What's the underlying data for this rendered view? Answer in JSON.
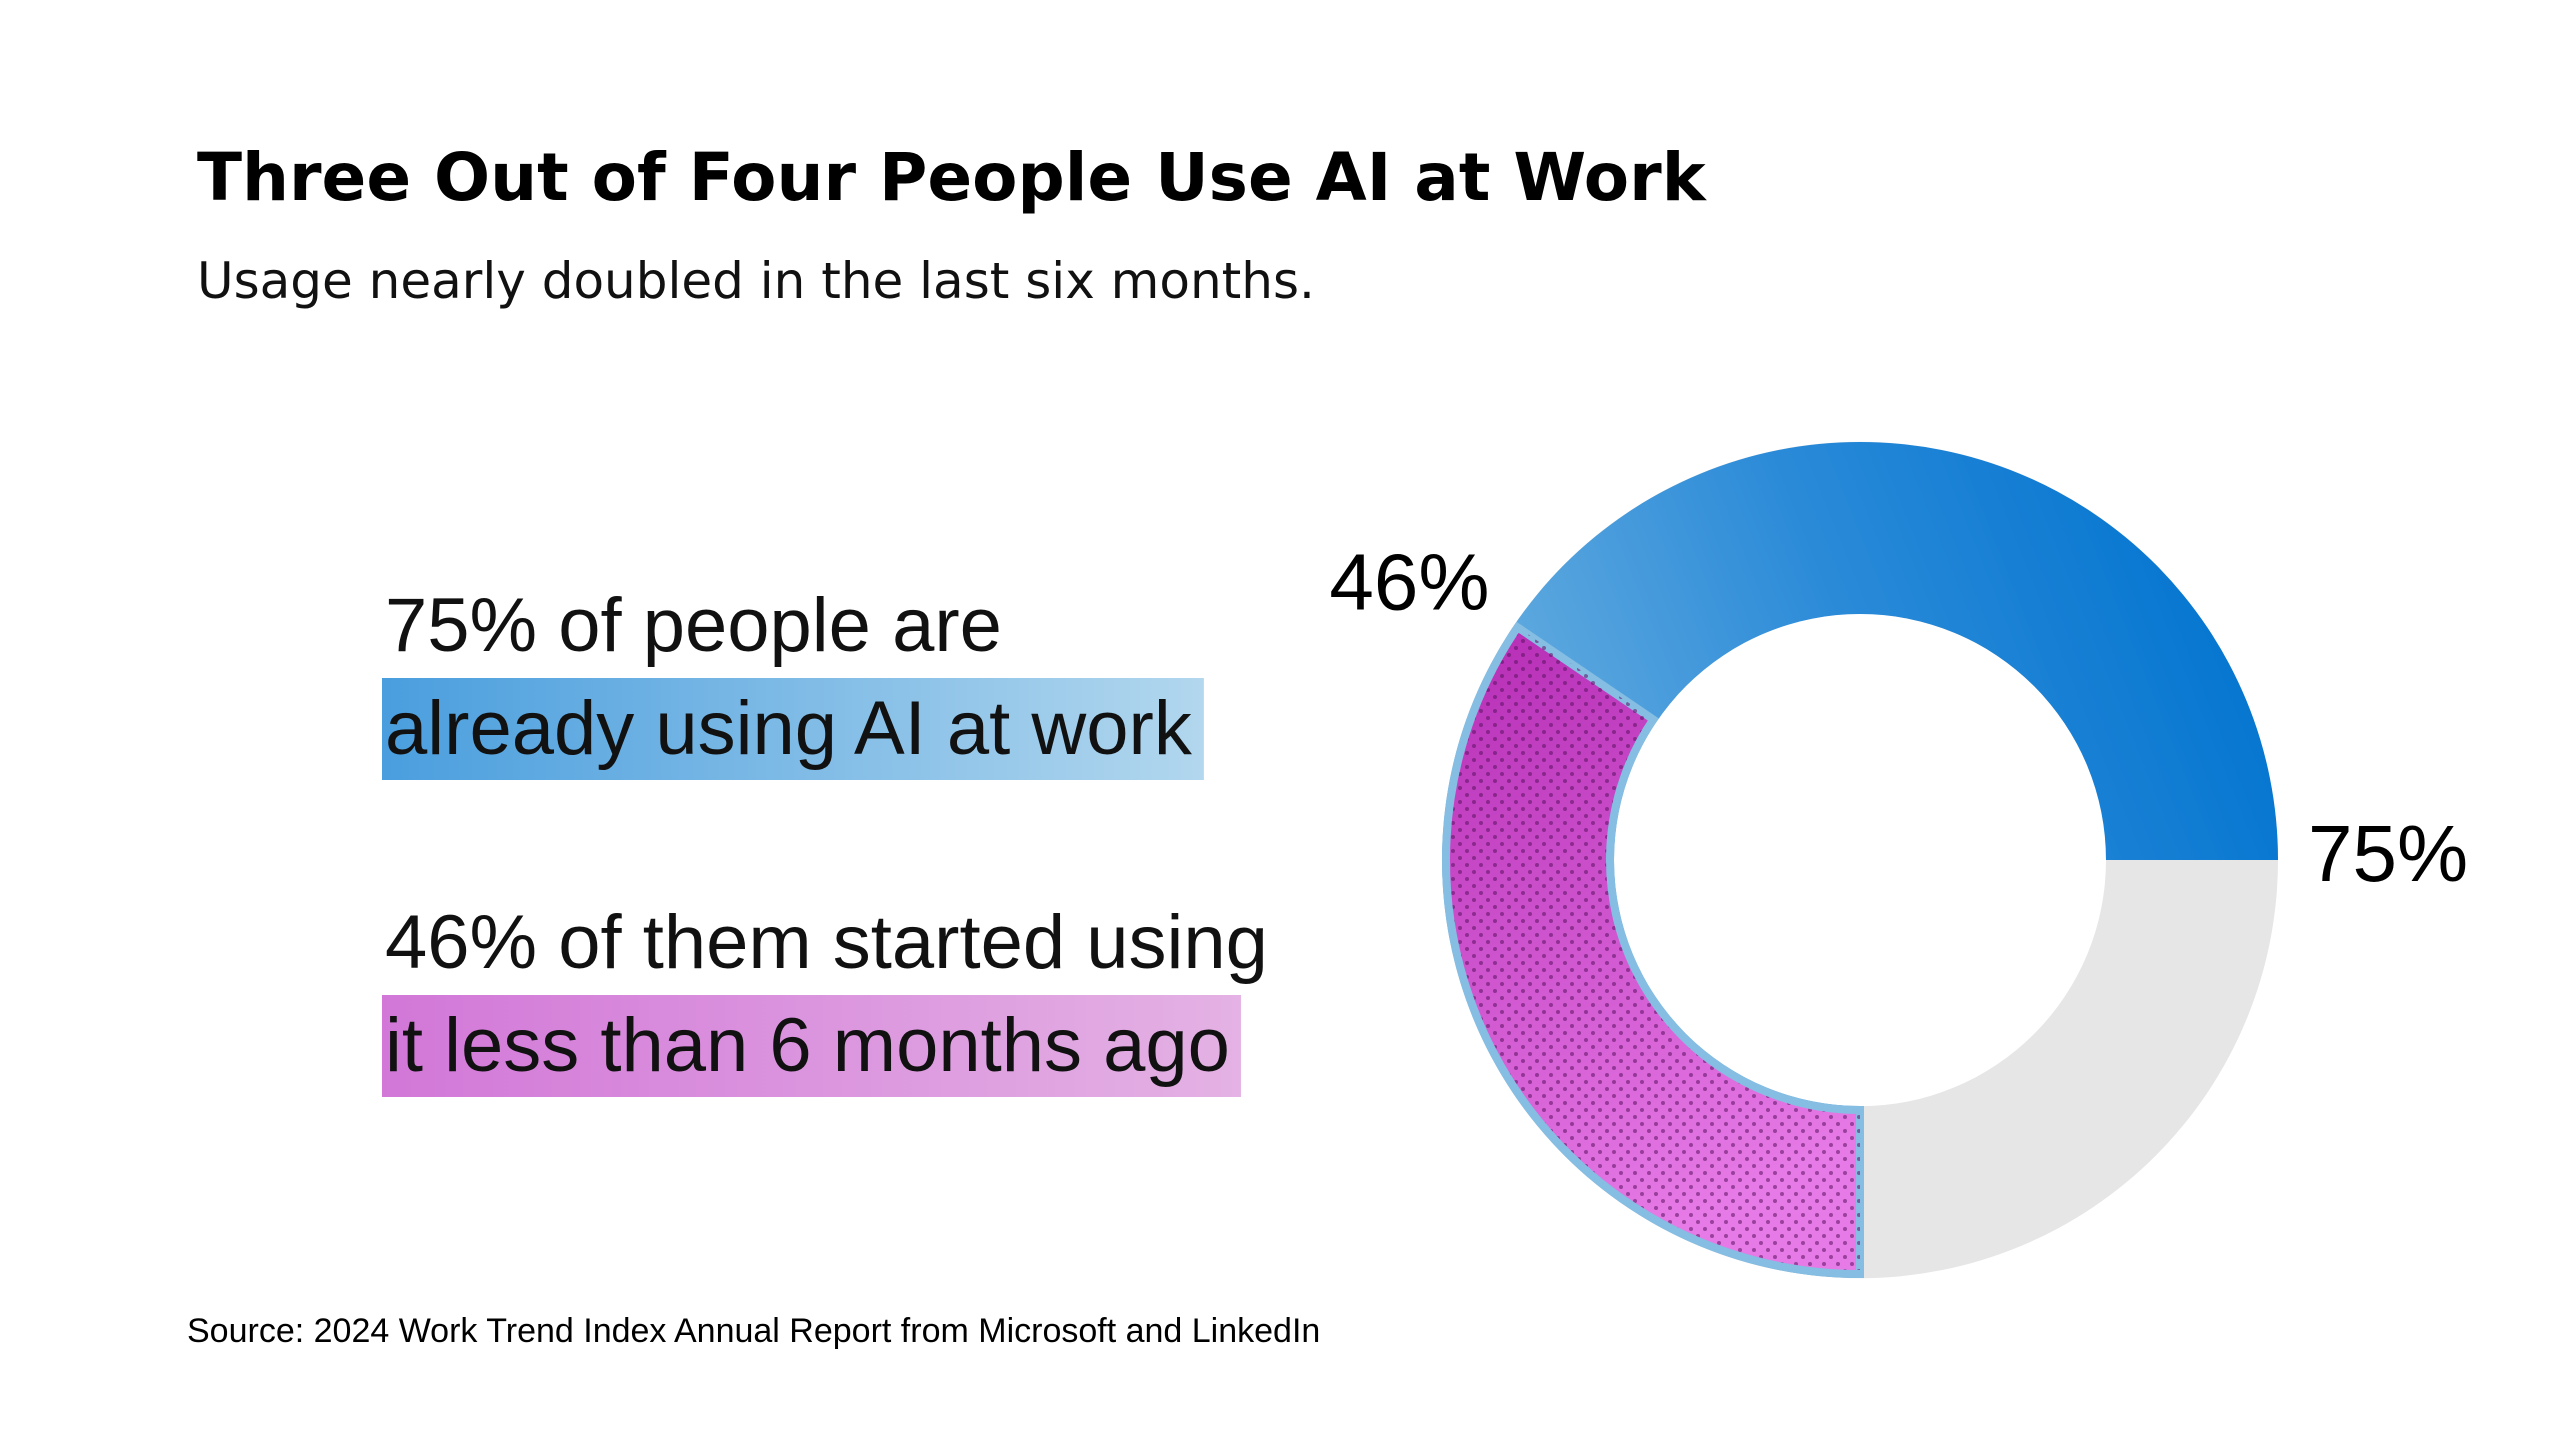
{
  "chart_data": {
    "type": "donut",
    "title": "Three Out of Four People Use AI at Work",
    "subtitle": "Usage nearly doubled in the last six months.",
    "values": [
      75,
      46
    ],
    "value_labels": [
      "75%",
      "46%"
    ],
    "colors": [
      "#0078d4",
      "#c03cc0"
    ],
    "track_color": "#e6e6e6",
    "callouts": [
      [
        "75% of people are",
        "already using AI at work"
      ],
      [
        "46% of them started using",
        "it less than 6 months ago"
      ]
    ],
    "source": "Source: 2024 Work Trend Index Annual Report from Microsoft and LinkedIn"
  }
}
